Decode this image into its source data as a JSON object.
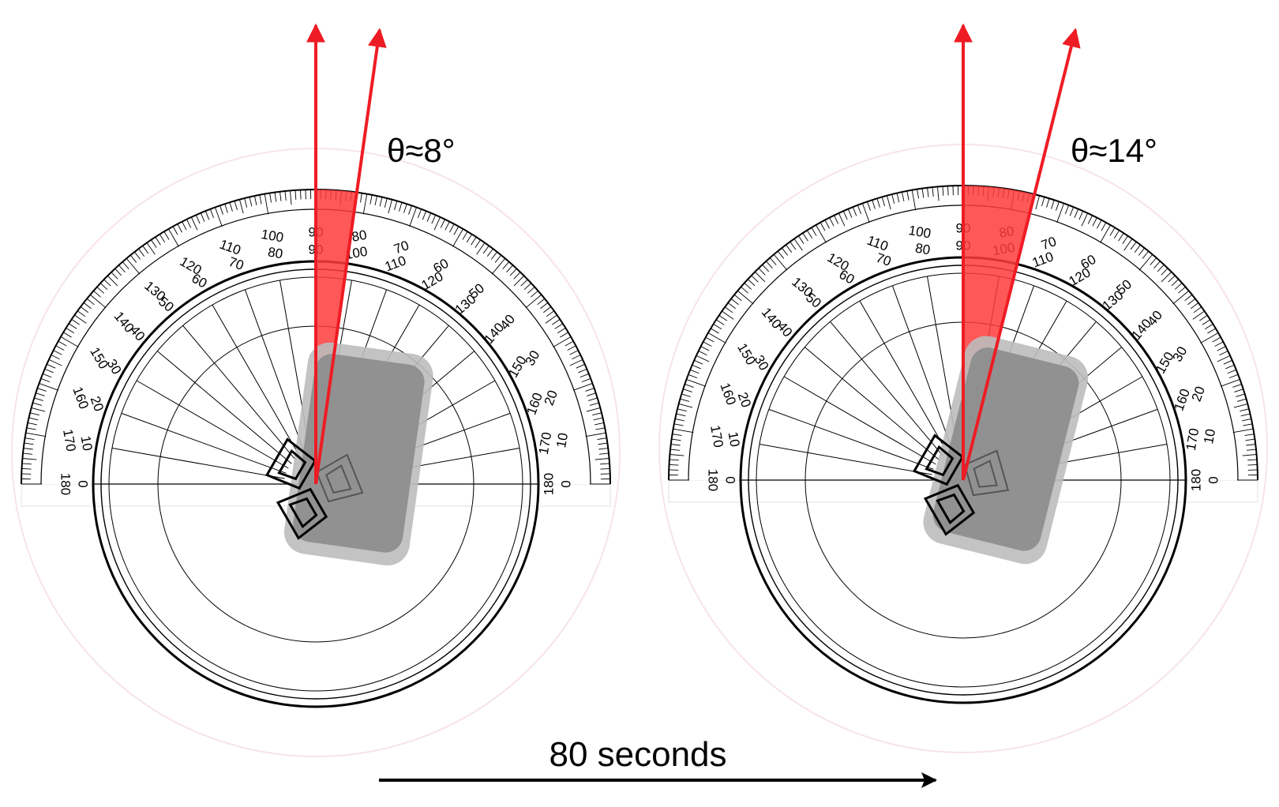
{
  "panels": [
    {
      "angle_label": "θ≈8°",
      "angle_deg": 8
    },
    {
      "angle_label": "θ≈14°",
      "angle_deg": 14
    }
  ],
  "time_caption": "80 seconds",
  "scale": {
    "outer_numbers": [
      0,
      10,
      20,
      30,
      40,
      50,
      60,
      70,
      80,
      90,
      100,
      110,
      120,
      130,
      140,
      150,
      160,
      170,
      180
    ],
    "inner_numbers": [
      180,
      170,
      160,
      150,
      140,
      130,
      120,
      110,
      100,
      90,
      80,
      70,
      60,
      50,
      40,
      30,
      20,
      10,
      0
    ]
  },
  "colors": {
    "indicator": "#ee1c24",
    "wedge": "#ff3b3b",
    "ink": "#000000",
    "device": "#8c8c8c"
  }
}
